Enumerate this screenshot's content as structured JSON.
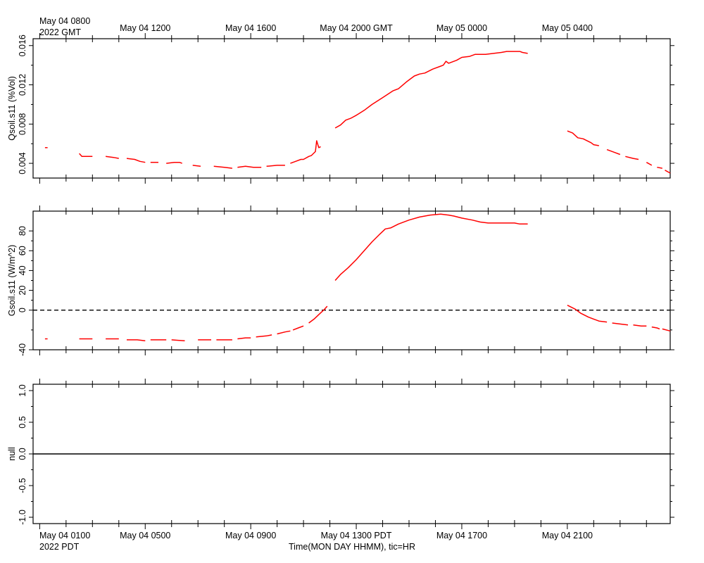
{
  "header": {
    "top_left_line1": "May 04 0800",
    "top_left_line2": "2022 GMT",
    "bottom_left_line1": "May 04 0100",
    "bottom_left_line2": "2022 PDT",
    "xlabel": "Time(MON DAY HHMM), tic=HR"
  },
  "top_axis_labels": [
    "May 04 1200",
    "May 04 1600",
    "May 04 2000 GMT",
    "May 05 0000",
    "May 05 0400"
  ],
  "bottom_axis_labels": [
    "May 04 0500",
    "May 04 0900",
    "May 04 1300 PDT",
    "May 04 1700",
    "May 04 2100"
  ],
  "colors": {
    "series": "#ff0000",
    "axis": "#000000"
  },
  "chart_data": [
    {
      "type": "line",
      "ylabel": "Qsoil.s11 (%Vol)",
      "x_units": "hours since May 04 0800 GMT",
      "xlim": [
        -0.25,
        23.9
      ],
      "ylim": [
        0.0025,
        0.0167
      ],
      "yticks": [
        0.004,
        0.008,
        0.012,
        0.016
      ],
      "ytick_labels": [
        "0.004",
        "0.008",
        "0.012",
        "0.016"
      ],
      "segments": [
        [
          [
            0.2,
            0.0056
          ],
          [
            0.3,
            0.0056
          ]
        ],
        [
          [
            1.5,
            0.005
          ],
          [
            1.6,
            0.0047
          ],
          [
            1.8,
            0.0047
          ],
          [
            2.0,
            0.0047
          ]
        ],
        [
          [
            2.5,
            0.0047
          ],
          [
            2.8,
            0.0046
          ],
          [
            3.0,
            0.0045
          ]
        ],
        [
          [
            3.3,
            0.0045
          ],
          [
            3.6,
            0.0044
          ],
          [
            3.8,
            0.0042
          ],
          [
            4.0,
            0.0041
          ]
        ],
        [
          [
            4.2,
            0.0041
          ],
          [
            4.5,
            0.0041
          ]
        ],
        [
          [
            4.8,
            0.004
          ],
          [
            5.1,
            0.0041
          ],
          [
            5.3,
            0.0041
          ],
          [
            5.4,
            0.004
          ]
        ],
        [
          [
            5.8,
            0.0038
          ],
          [
            6.1,
            0.0037
          ]
        ],
        [
          [
            6.6,
            0.0037
          ],
          [
            7.0,
            0.0036
          ],
          [
            7.3,
            0.0035
          ]
        ],
        [
          [
            7.5,
            0.0036
          ],
          [
            7.8,
            0.0037
          ],
          [
            8.1,
            0.0036
          ],
          [
            8.4,
            0.0036
          ]
        ],
        [
          [
            8.6,
            0.0037
          ],
          [
            9.0,
            0.0038
          ],
          [
            9.3,
            0.0038
          ]
        ],
        [
          [
            9.5,
            0.004
          ],
          [
            9.7,
            0.0042
          ],
          [
            9.9,
            0.0044
          ],
          [
            10.0,
            0.0044
          ],
          [
            10.2,
            0.0047
          ],
          [
            10.3,
            0.0048
          ],
          [
            10.45,
            0.0052
          ],
          [
            10.5,
            0.0063
          ],
          [
            10.58,
            0.0056
          ],
          [
            10.65,
            0.0057
          ]
        ],
        [
          [
            11.2,
            0.0076
          ],
          [
            11.4,
            0.0079
          ],
          [
            11.6,
            0.0084
          ],
          [
            11.8,
            0.0086
          ],
          [
            12.0,
            0.0089
          ],
          [
            12.3,
            0.0094
          ],
          [
            12.6,
            0.01
          ],
          [
            13.0,
            0.0107
          ],
          [
            13.4,
            0.0114
          ],
          [
            13.6,
            0.0116
          ],
          [
            13.9,
            0.0123
          ],
          [
            14.2,
            0.0129
          ],
          [
            14.4,
            0.0131
          ],
          [
            14.6,
            0.0132
          ],
          [
            14.9,
            0.0136
          ],
          [
            15.2,
            0.0139
          ],
          [
            15.3,
            0.014
          ],
          [
            15.4,
            0.0144
          ],
          [
            15.5,
            0.0142
          ],
          [
            15.8,
            0.0145
          ],
          [
            16.0,
            0.0148
          ],
          [
            16.3,
            0.0149
          ],
          [
            16.5,
            0.0151
          ],
          [
            16.9,
            0.0151
          ],
          [
            17.2,
            0.0152
          ],
          [
            17.5,
            0.0153
          ],
          [
            17.7,
            0.0154
          ],
          [
            18.0,
            0.0154
          ],
          [
            18.2,
            0.0154
          ],
          [
            18.3,
            0.0153
          ],
          [
            18.5,
            0.0152
          ]
        ],
        [
          [
            20.0,
            0.0073
          ],
          [
            20.2,
            0.0071
          ],
          [
            20.4,
            0.0066
          ],
          [
            20.6,
            0.0065
          ],
          [
            20.9,
            0.0061
          ],
          [
            21.0,
            0.0059
          ],
          [
            21.2,
            0.0058
          ]
        ],
        [
          [
            21.5,
            0.0054
          ],
          [
            21.8,
            0.0051
          ],
          [
            22.0,
            0.0049
          ]
        ],
        [
          [
            22.2,
            0.0047
          ],
          [
            22.5,
            0.0045
          ],
          [
            22.7,
            0.0044
          ]
        ],
        [
          [
            23.0,
            0.0041
          ],
          [
            23.2,
            0.0038
          ]
        ],
        [
          [
            23.4,
            0.0036
          ],
          [
            23.6,
            0.0035
          ]
        ],
        [
          [
            23.7,
            0.0033
          ],
          [
            23.9,
            0.003
          ]
        ]
      ]
    },
    {
      "type": "line",
      "ylabel": "Gsoil.s11 (W/m^2)",
      "x_units": "hours since May 04 0800 GMT",
      "xlim": [
        -0.25,
        23.9
      ],
      "ylim": [
        -40,
        100
      ],
      "yticks": [
        -40,
        0,
        20,
        40,
        60,
        80
      ],
      "ytick_labels": [
        "-40",
        "0",
        "20",
        "40",
        "60",
        "80"
      ],
      "zero_line": true,
      "segments": [
        [
          [
            0.2,
            -29
          ],
          [
            0.3,
            -29
          ]
        ],
        [
          [
            1.5,
            -29
          ],
          [
            1.9,
            -29
          ],
          [
            2.0,
            -29
          ]
        ],
        [
          [
            2.5,
            -29
          ],
          [
            3.0,
            -29
          ]
        ],
        [
          [
            3.3,
            -30
          ],
          [
            3.7,
            -30
          ],
          [
            4.0,
            -31
          ]
        ],
        [
          [
            4.2,
            -30
          ],
          [
            4.5,
            -30
          ],
          [
            4.8,
            -30
          ]
        ],
        [
          [
            5.0,
            -30
          ],
          [
            5.5,
            -31
          ]
        ],
        [
          [
            6.0,
            -30
          ],
          [
            6.5,
            -30
          ]
        ],
        [
          [
            6.7,
            -30
          ],
          [
            7.0,
            -30
          ],
          [
            7.3,
            -30
          ]
        ],
        [
          [
            7.5,
            -29
          ],
          [
            7.8,
            -28
          ],
          [
            8.0,
            -28
          ]
        ],
        [
          [
            8.2,
            -27
          ],
          [
            8.6,
            -26
          ],
          [
            8.8,
            -25
          ]
        ],
        [
          [
            9.0,
            -24
          ],
          [
            9.3,
            -22
          ],
          [
            9.5,
            -21
          ]
        ],
        [
          [
            9.6,
            -20
          ],
          [
            9.8,
            -18
          ],
          [
            10.0,
            -16
          ]
        ],
        [
          [
            10.2,
            -13
          ],
          [
            10.4,
            -9
          ],
          [
            10.6,
            -4
          ],
          [
            10.8,
            1
          ],
          [
            10.9,
            4
          ]
        ],
        [
          [
            11.2,
            30
          ],
          [
            11.4,
            36
          ],
          [
            11.7,
            43
          ],
          [
            12.0,
            51
          ],
          [
            12.3,
            60
          ],
          [
            12.6,
            69
          ],
          [
            12.9,
            77
          ],
          [
            13.1,
            82
          ],
          [
            13.3,
            83
          ],
          [
            13.6,
            87
          ],
          [
            14.0,
            91
          ],
          [
            14.4,
            94
          ],
          [
            14.8,
            96
          ],
          [
            15.2,
            97
          ],
          [
            15.5,
            96
          ],
          [
            15.7,
            95
          ],
          [
            16.0,
            93
          ],
          [
            16.4,
            91
          ],
          [
            16.7,
            89
          ],
          [
            17.0,
            88
          ],
          [
            17.3,
            88
          ],
          [
            17.7,
            88
          ],
          [
            18.0,
            88
          ],
          [
            18.2,
            87
          ],
          [
            18.5,
            87
          ]
        ],
        [
          [
            20.0,
            5
          ],
          [
            20.3,
            1
          ],
          [
            20.5,
            -3
          ],
          [
            20.8,
            -7
          ],
          [
            21.0,
            -9
          ],
          [
            21.2,
            -11
          ],
          [
            21.5,
            -12
          ]
        ],
        [
          [
            21.7,
            -13
          ],
          [
            22.0,
            -14
          ],
          [
            22.3,
            -15
          ]
        ],
        [
          [
            22.5,
            -15
          ],
          [
            22.8,
            -16
          ],
          [
            23.0,
            -16
          ]
        ],
        [
          [
            23.2,
            -17
          ],
          [
            23.4,
            -18
          ],
          [
            23.5,
            -19
          ]
        ],
        [
          [
            23.6,
            -19
          ],
          [
            23.9,
            -21
          ]
        ]
      ]
    },
    {
      "type": "line",
      "ylabel": "null",
      "x_units": "hours since May 04 0800 GMT",
      "xlim": [
        -0.25,
        23.9
      ],
      "ylim": [
        -1.1,
        1.1
      ],
      "yticks": [
        -1.0,
        -0.5,
        0.0,
        0.5,
        1.0
      ],
      "ytick_labels": [
        "-1.0",
        "-0.5",
        "0.0",
        "0.5",
        "1.0"
      ],
      "zero_line": true,
      "segments": []
    }
  ]
}
